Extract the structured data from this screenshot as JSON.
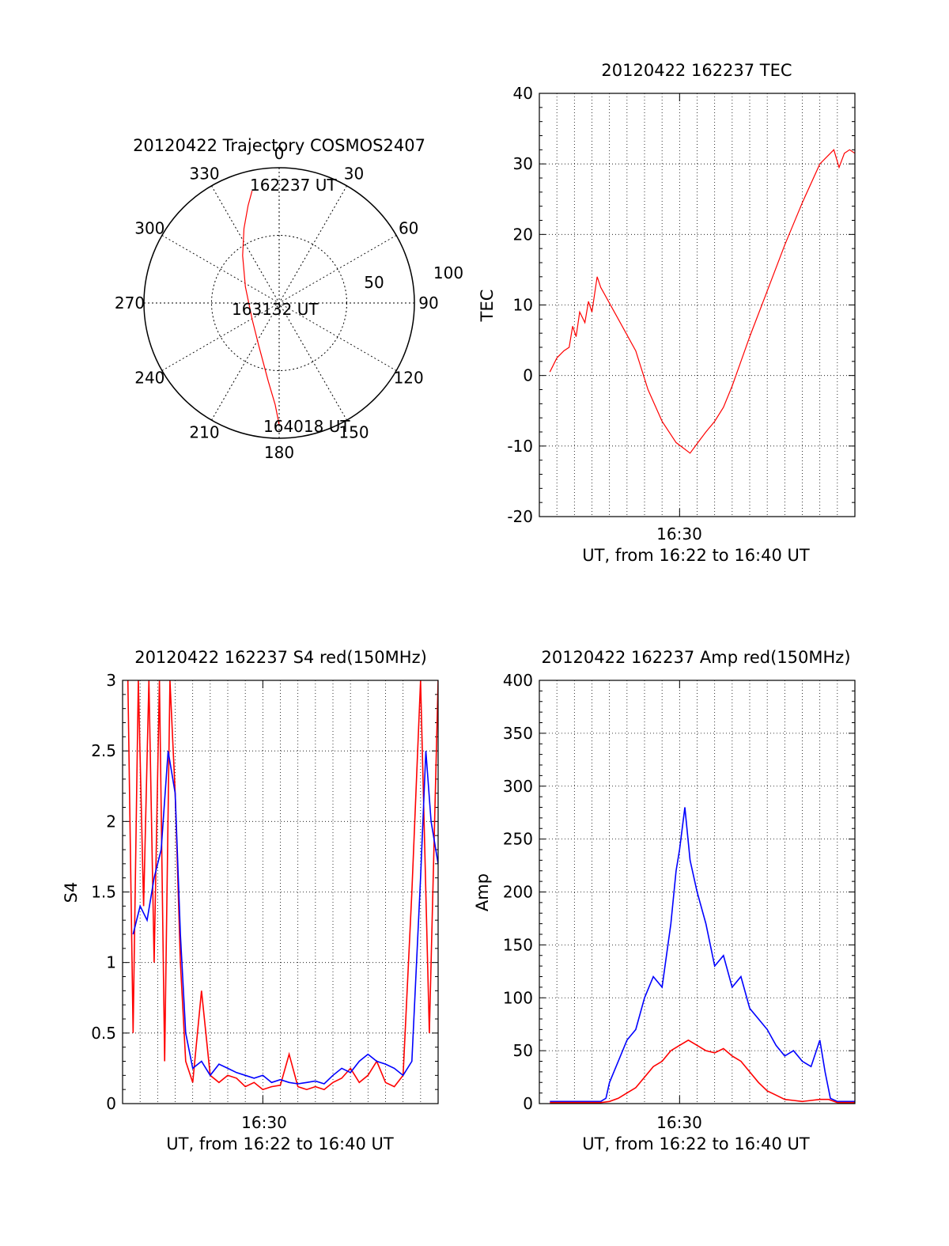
{
  "colors": {
    "primary_series": "#ff0000",
    "secondary_series": "#0000ff",
    "grid": "#000000"
  },
  "chart_data": [
    {
      "type": "polar",
      "title": "20120422 Trajectory COSMOS2407",
      "angle_labels": [
        "0",
        "30",
        "60",
        "90",
        "120",
        "150",
        "180",
        "210",
        "240",
        "270",
        "300",
        "330"
      ],
      "radius_labels": [
        "50",
        "100"
      ],
      "rlim": [
        0,
        100
      ],
      "annotations": [
        "162237 UT",
        "163132 UT",
        "164018 UT"
      ],
      "series": [
        {
          "points": [
            [
              -20,
              83
            ],
            [
              -23,
              72
            ],
            [
              -26,
              55
            ],
            [
              -27,
              35
            ],
            [
              -25,
              12
            ],
            [
              -20,
              -12
            ],
            [
              -15,
              -32
            ],
            [
              -8,
              -58
            ],
            [
              -3,
              -75
            ],
            [
              0,
              -90
            ]
          ]
        }
      ]
    },
    {
      "type": "line",
      "title": "20120422 162237 TEC",
      "ylabel": "TEC",
      "xlabel": "UT, from 16:22 to 16:40 UT",
      "xlim": [
        0,
        18
      ],
      "ylim": [
        -20,
        40
      ],
      "yticks": [
        -20,
        -10,
        0,
        10,
        20,
        30,
        40
      ],
      "xticks": [
        {
          "x": 8,
          "label": "16:30"
        }
      ],
      "grid": true,
      "series": [
        {
          "color": "red",
          "x": [
            0.6,
            1.0,
            1.4,
            1.7,
            1.9,
            2.1,
            2.3,
            2.6,
            2.8,
            3.0,
            3.3,
            3.5,
            4.5,
            5.5,
            6.2,
            7.0,
            7.8,
            8.6,
            9.2,
            9.5,
            10,
            10.5,
            11,
            11.5,
            12,
            13,
            14,
            15,
            16,
            16.8,
            17.1,
            17.4,
            17.7,
            18.0
          ],
          "y": [
            0.5,
            2.5,
            3.5,
            4.0,
            7.0,
            5.5,
            9.0,
            7.5,
            10.5,
            9.0,
            14.0,
            12.5,
            8.0,
            3.5,
            -2.0,
            -6.5,
            -9.5,
            -11.0,
            -9.0,
            -8.0,
            -6.5,
            -4.5,
            -1.5,
            2.0,
            5.5,
            12.0,
            18.5,
            24.5,
            30.0,
            32.0,
            29.5,
            31.5,
            32.0,
            31.5
          ]
        }
      ]
    },
    {
      "type": "line",
      "title": "20120422 162237 S4 red(150MHz)",
      "ylabel": "S4",
      "xlabel": "UT, from 16:22 to 16:40 UT",
      "xlim": [
        0,
        18
      ],
      "ylim": [
        0,
        3
      ],
      "yticks": [
        "0",
        "0.5",
        "1",
        "1.5",
        "2",
        "2.5",
        "3"
      ],
      "xticks": [
        {
          "x": 8,
          "label": "16:30"
        }
      ],
      "grid": true,
      "series": [
        {
          "color": "red",
          "x": [
            0.3,
            0.6,
            0.9,
            1.2,
            1.5,
            1.8,
            2.1,
            2.4,
            2.7,
            3.0,
            3.3,
            3.6,
            4.0,
            4.5,
            5.0,
            5.5,
            6.0,
            6.5,
            7.0,
            7.5,
            8.0,
            8.5,
            9.0,
            9.5,
            10.0,
            10.5,
            11.0,
            11.5,
            12.0,
            12.5,
            13.0,
            13.5,
            14.0,
            14.5,
            15.0,
            15.5,
            16.0,
            16.5,
            17.0,
            17.5,
            18.0
          ],
          "y": [
            3.0,
            0.5,
            3.0,
            1.4,
            3.0,
            1.0,
            3.0,
            0.3,
            3.0,
            2.2,
            1.0,
            0.3,
            0.15,
            0.8,
            0.2,
            0.15,
            0.2,
            0.18,
            0.12,
            0.15,
            0.1,
            0.12,
            0.13,
            0.35,
            0.12,
            0.1,
            0.12,
            0.1,
            0.15,
            0.18,
            0.25,
            0.15,
            0.2,
            0.3,
            0.15,
            0.12,
            0.2,
            1.5,
            3.0,
            0.5,
            3.0
          ]
        },
        {
          "color": "blue",
          "x": [
            0.6,
            1.0,
            1.4,
            1.8,
            2.2,
            2.6,
            3.0,
            3.3,
            3.6,
            4.0,
            4.5,
            5.0,
            5.5,
            6.0,
            6.5,
            7.0,
            7.5,
            8.0,
            8.5,
            9.0,
            9.5,
            10.0,
            10.5,
            11.0,
            11.5,
            12.0,
            12.5,
            13.0,
            13.5,
            14.0,
            14.5,
            15.0,
            15.5,
            16.0,
            16.5,
            17.0,
            17.3,
            17.6,
            18.0
          ],
          "y": [
            1.2,
            1.4,
            1.3,
            1.6,
            1.8,
            2.5,
            2.2,
            1.2,
            0.5,
            0.25,
            0.3,
            0.2,
            0.28,
            0.25,
            0.22,
            0.2,
            0.18,
            0.2,
            0.15,
            0.17,
            0.15,
            0.14,
            0.15,
            0.16,
            0.14,
            0.2,
            0.25,
            0.22,
            0.3,
            0.35,
            0.3,
            0.28,
            0.25,
            0.2,
            0.3,
            1.6,
            2.5,
            2.0,
            1.7
          ]
        }
      ]
    },
    {
      "type": "line",
      "title": "20120422 162237 Amp red(150MHz)",
      "ylabel": "Amp",
      "xlabel": "UT, from 16:22 to 16:40 UT",
      "xlim": [
        0,
        18
      ],
      "ylim": [
        0,
        400
      ],
      "yticks": [
        0,
        50,
        100,
        150,
        200,
        250,
        300,
        350,
        400
      ],
      "xticks": [
        {
          "x": 8,
          "label": "16:30"
        }
      ],
      "grid": true,
      "series": [
        {
          "color": "blue",
          "x": [
            0.6,
            1.5,
            2.5,
            3.5,
            3.8,
            4.0,
            4.5,
            5.0,
            5.5,
            6.0,
            6.5,
            7.0,
            7.5,
            7.8,
            8.0,
            8.3,
            8.6,
            9.0,
            9.5,
            10.0,
            10.5,
            11.0,
            11.5,
            12.0,
            12.5,
            13.0,
            13.5,
            14.0,
            14.5,
            15.0,
            15.5,
            16.0,
            16.3,
            16.6,
            17.0,
            18.0
          ],
          "y": [
            2,
            2,
            2,
            2,
            5,
            20,
            40,
            60,
            70,
            100,
            120,
            110,
            170,
            220,
            240,
            280,
            230,
            200,
            170,
            130,
            140,
            110,
            120,
            90,
            80,
            70,
            55,
            45,
            50,
            40,
            35,
            60,
            30,
            5,
            2,
            2
          ]
        },
        {
          "color": "red",
          "x": [
            0.6,
            2,
            3.5,
            4.0,
            4.5,
            5.0,
            5.5,
            6.0,
            6.5,
            7.0,
            7.5,
            8.0,
            8.5,
            9.0,
            9.5,
            10.0,
            10.5,
            11.0,
            11.5,
            12.0,
            12.5,
            13.0,
            13.5,
            14.0,
            14.5,
            15.0,
            15.5,
            16.0,
            16.5,
            17.0,
            18.0
          ],
          "y": [
            1,
            1,
            1,
            2,
            5,
            10,
            15,
            25,
            35,
            40,
            50,
            55,
            60,
            55,
            50,
            48,
            52,
            45,
            40,
            30,
            20,
            12,
            8,
            4,
            3,
            2,
            3,
            4,
            4,
            1,
            1
          ]
        }
      ]
    }
  ]
}
